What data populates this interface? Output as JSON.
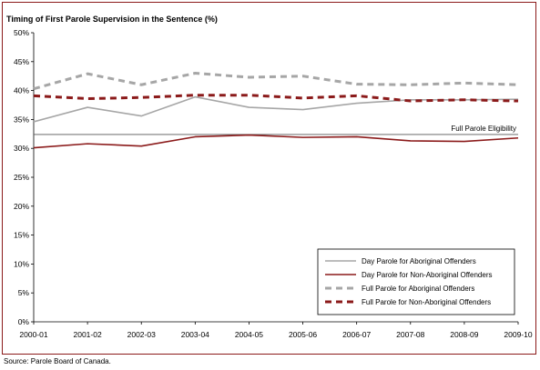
{
  "source": "Source:  Parole Board of Canada.",
  "colors": {
    "day_aboriginal": "#a6a6a6",
    "day_non_aboriginal": "#8b1a1a",
    "full_aboriginal": "#a6a6a6",
    "full_non_aboriginal": "#8b1a1a",
    "eligibility_line": "#555555",
    "frame": "#8b1a1a"
  },
  "chart_data": {
    "type": "line",
    "title": "Timing of First Parole Supervision in the Sentence (%)",
    "xlabel": "",
    "ylabel": "",
    "categories": [
      "2000-01",
      "2001-02",
      "2002-03",
      "2003-04",
      "2004-05",
      "2005-06",
      "2006-07",
      "2007-08",
      "2008-09",
      "2009-10"
    ],
    "ylim": [
      0,
      50
    ],
    "yticks": [
      "0%",
      "5%",
      "10%",
      "15%",
      "20%",
      "25%",
      "30%",
      "35%",
      "40%",
      "45%",
      "50%"
    ],
    "grid": false,
    "legend_position": "bottom-right",
    "series": [
      {
        "name": "Day Parole for Aboriginal Offenders",
        "style": "solid",
        "values": [
          34.6,
          37.1,
          35.6,
          38.9,
          37.1,
          36.7,
          37.8,
          38.4,
          38.4,
          38.5
        ]
      },
      {
        "name": "Day Parole for Non-Aboriginal Offenders",
        "style": "solid",
        "values": [
          30.1,
          30.8,
          30.4,
          32.0,
          32.3,
          31.9,
          32.0,
          31.3,
          31.2,
          31.8
        ]
      },
      {
        "name": "Full Parole for Aboriginal Offenders",
        "style": "dashed",
        "values": [
          40.3,
          42.9,
          41.0,
          43.0,
          42.3,
          42.5,
          41.1,
          41.0,
          41.3,
          41.0
        ]
      },
      {
        "name": "Full Parole for Non-Aboriginal Offenders",
        "style": "dashed",
        "values": [
          39.1,
          38.6,
          38.8,
          39.2,
          39.2,
          38.7,
          39.1,
          38.2,
          38.4,
          38.2
        ]
      }
    ],
    "reference_line": {
      "label": "Full Parole Eligibility",
      "value": 32.4
    }
  }
}
